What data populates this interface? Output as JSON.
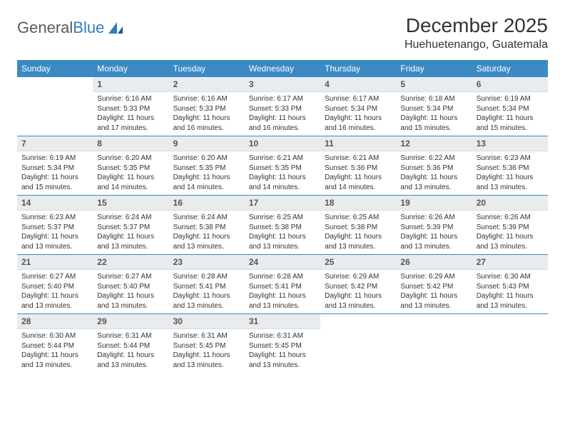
{
  "logo": {
    "text_gray": "General",
    "text_blue": "Blue"
  },
  "title": "December 2025",
  "location": "Huehuetenango, Guatemala",
  "colors": {
    "header_bg": "#3b8ac4",
    "header_fg": "#ffffff",
    "daynum_bg": "#e9ecef",
    "row_border": "#3b8ac4",
    "logo_gray": "#5a5a5a",
    "logo_blue": "#2f7dc0"
  },
  "weekdays": [
    "Sunday",
    "Monday",
    "Tuesday",
    "Wednesday",
    "Thursday",
    "Friday",
    "Saturday"
  ],
  "start_offset": 1,
  "days": [
    {
      "n": 1,
      "sr": "6:16 AM",
      "ss": "5:33 PM",
      "dl": "11 hours and 17 minutes."
    },
    {
      "n": 2,
      "sr": "6:16 AM",
      "ss": "5:33 PM",
      "dl": "11 hours and 16 minutes."
    },
    {
      "n": 3,
      "sr": "6:17 AM",
      "ss": "5:33 PM",
      "dl": "11 hours and 16 minutes."
    },
    {
      "n": 4,
      "sr": "6:17 AM",
      "ss": "5:34 PM",
      "dl": "11 hours and 16 minutes."
    },
    {
      "n": 5,
      "sr": "6:18 AM",
      "ss": "5:34 PM",
      "dl": "11 hours and 15 minutes."
    },
    {
      "n": 6,
      "sr": "6:19 AM",
      "ss": "5:34 PM",
      "dl": "11 hours and 15 minutes."
    },
    {
      "n": 7,
      "sr": "6:19 AM",
      "ss": "5:34 PM",
      "dl": "11 hours and 15 minutes."
    },
    {
      "n": 8,
      "sr": "6:20 AM",
      "ss": "5:35 PM",
      "dl": "11 hours and 14 minutes."
    },
    {
      "n": 9,
      "sr": "6:20 AM",
      "ss": "5:35 PM",
      "dl": "11 hours and 14 minutes."
    },
    {
      "n": 10,
      "sr": "6:21 AM",
      "ss": "5:35 PM",
      "dl": "11 hours and 14 minutes."
    },
    {
      "n": 11,
      "sr": "6:21 AM",
      "ss": "5:36 PM",
      "dl": "11 hours and 14 minutes."
    },
    {
      "n": 12,
      "sr": "6:22 AM",
      "ss": "5:36 PM",
      "dl": "11 hours and 13 minutes."
    },
    {
      "n": 13,
      "sr": "6:23 AM",
      "ss": "5:36 PM",
      "dl": "11 hours and 13 minutes."
    },
    {
      "n": 14,
      "sr": "6:23 AM",
      "ss": "5:37 PM",
      "dl": "11 hours and 13 minutes."
    },
    {
      "n": 15,
      "sr": "6:24 AM",
      "ss": "5:37 PM",
      "dl": "11 hours and 13 minutes."
    },
    {
      "n": 16,
      "sr": "6:24 AM",
      "ss": "5:38 PM",
      "dl": "11 hours and 13 minutes."
    },
    {
      "n": 17,
      "sr": "6:25 AM",
      "ss": "5:38 PM",
      "dl": "11 hours and 13 minutes."
    },
    {
      "n": 18,
      "sr": "6:25 AM",
      "ss": "5:38 PM",
      "dl": "11 hours and 13 minutes."
    },
    {
      "n": 19,
      "sr": "6:26 AM",
      "ss": "5:39 PM",
      "dl": "11 hours and 13 minutes."
    },
    {
      "n": 20,
      "sr": "6:26 AM",
      "ss": "5:39 PM",
      "dl": "11 hours and 13 minutes."
    },
    {
      "n": 21,
      "sr": "6:27 AM",
      "ss": "5:40 PM",
      "dl": "11 hours and 13 minutes."
    },
    {
      "n": 22,
      "sr": "6:27 AM",
      "ss": "5:40 PM",
      "dl": "11 hours and 13 minutes."
    },
    {
      "n": 23,
      "sr": "6:28 AM",
      "ss": "5:41 PM",
      "dl": "11 hours and 13 minutes."
    },
    {
      "n": 24,
      "sr": "6:28 AM",
      "ss": "5:41 PM",
      "dl": "11 hours and 13 minutes."
    },
    {
      "n": 25,
      "sr": "6:29 AM",
      "ss": "5:42 PM",
      "dl": "11 hours and 13 minutes."
    },
    {
      "n": 26,
      "sr": "6:29 AM",
      "ss": "5:42 PM",
      "dl": "11 hours and 13 minutes."
    },
    {
      "n": 27,
      "sr": "6:30 AM",
      "ss": "5:43 PM",
      "dl": "11 hours and 13 minutes."
    },
    {
      "n": 28,
      "sr": "6:30 AM",
      "ss": "5:44 PM",
      "dl": "11 hours and 13 minutes."
    },
    {
      "n": 29,
      "sr": "6:31 AM",
      "ss": "5:44 PM",
      "dl": "11 hours and 13 minutes."
    },
    {
      "n": 30,
      "sr": "6:31 AM",
      "ss": "5:45 PM",
      "dl": "11 hours and 13 minutes."
    },
    {
      "n": 31,
      "sr": "6:31 AM",
      "ss": "5:45 PM",
      "dl": "11 hours and 13 minutes."
    }
  ],
  "labels": {
    "sunrise": "Sunrise:",
    "sunset": "Sunset:",
    "daylight": "Daylight:"
  }
}
